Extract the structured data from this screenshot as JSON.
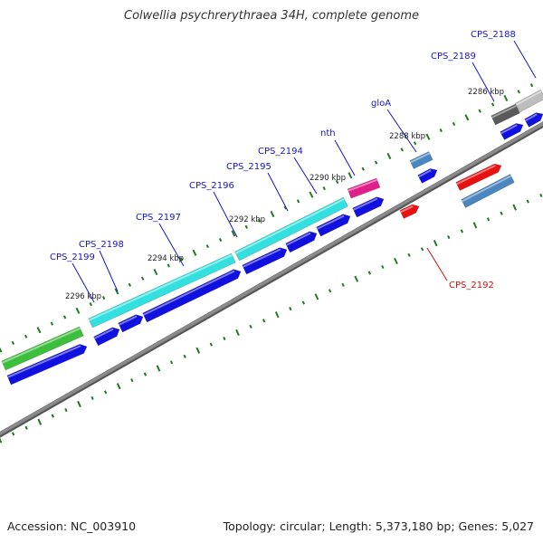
{
  "title": "Colwellia psychrerythraea 34H, complete genome",
  "accession_label": "Accession: NC_003910",
  "summary_label": "Topology: circular; Length: 5,373,180 bp; Genes: 5,027",
  "colors": {
    "backbone": "#8a8a8a",
    "ticks": "#1e7b1e",
    "label_default": "#1515c8",
    "label_highlight": "#d01010",
    "cds_blue": "#1010e0",
    "cyan": "#33e0e0",
    "green": "#3cbf3c",
    "magenta": "#e0208a",
    "steel": "#4a86bf",
    "red": "#e81010",
    "gray_dark": "#5a5a5a",
    "gray_light": "#bdbdbd"
  },
  "scale_labels": [
    "2296 kbp",
    "2294 kbp",
    "2292 kbp",
    "2290 kbp",
    "2288 kbp",
    "2286 kbp"
  ],
  "gene_labels": [
    {
      "name": "CPS_2199",
      "highlight": false
    },
    {
      "name": "CPS_2198",
      "highlight": false
    },
    {
      "name": "CPS_2197",
      "highlight": false
    },
    {
      "name": "CPS_2196",
      "highlight": false
    },
    {
      "name": "CPS_2195",
      "highlight": false
    },
    {
      "name": "CPS_2194",
      "highlight": false
    },
    {
      "name": "nth",
      "highlight": false
    },
    {
      "name": "gloA",
      "highlight": false
    },
    {
      "name": "CPS_2189",
      "highlight": false
    },
    {
      "name": "CPS_2188",
      "highlight": false
    },
    {
      "name": "CPS_2192",
      "highlight": true
    }
  ]
}
